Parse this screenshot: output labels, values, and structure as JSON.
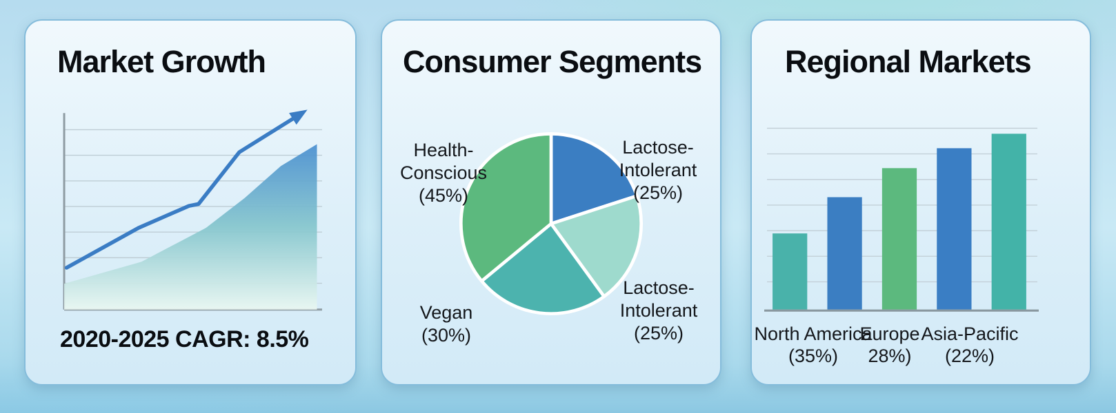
{
  "background": {
    "base_top": "#b6dcef",
    "base_bottom": "#8cc8e2",
    "card_border": "#84bcdb",
    "card_bg_top": "#f1f9fd",
    "card_bg_bottom": "#d2eaf7"
  },
  "cards": [
    {
      "title": "Market Growth",
      "caption": "2020-2025 CAGR: 8.5%"
    },
    {
      "title": "Consumer Segments",
      "labels": [
        {
          "lines": [
            "Health-",
            "Conscious",
            "(45%)"
          ]
        },
        {
          "lines": [
            "Lactose-",
            "Intolerant",
            "(25%)"
          ]
        },
        {
          "lines": [
            "Lactose-",
            "Intolerant",
            "(25%)"
          ]
        },
        {
          "lines": [
            "Vegan",
            "(30%)"
          ]
        }
      ]
    },
    {
      "title": "Regional Markets",
      "labels": [
        {
          "lines": [
            "North America",
            "(35%)"
          ]
        },
        {
          "lines": [
            "Europe",
            "28%)"
          ]
        },
        {
          "lines": [
            "Asia-Pacific",
            "(22%)"
          ]
        }
      ]
    }
  ],
  "chart_data": [
    {
      "type": "area",
      "title": "Market Growth",
      "annotation": "2020-2025 CAGR: 8.5%",
      "xlabel": "",
      "ylabel": "",
      "grid": true,
      "gridlines": 7,
      "line_points_pct": [
        [
          1,
          21
        ],
        [
          31,
          41
        ],
        [
          52,
          52
        ],
        [
          56,
          53
        ],
        [
          73,
          79
        ],
        [
          97,
          97
        ]
      ],
      "area_points_pct": [
        [
          0,
          13
        ],
        [
          30,
          24
        ],
        [
          55,
          41
        ],
        [
          70,
          56
        ],
        [
          84,
          72
        ],
        [
          98,
          83
        ]
      ],
      "line_color": "#3a7cc4",
      "area_gradient": [
        "#4a8fd0",
        "#86c6cd",
        "#e9f7f1"
      ],
      "axis_color": "#8f9ca3",
      "grid_color": "#becdd5",
      "arrow_end": true
    },
    {
      "type": "pie",
      "title": "Consumer Segments",
      "start_angle_deg": -90,
      "direction": "clockwise",
      "slices": [
        {
          "label": "Lactose-Intolerant",
          "value": 25,
          "color": "#3b7ec2"
        },
        {
          "label": "Lactose-Intolerant",
          "value": 25,
          "color": "#9edacd"
        },
        {
          "label": "Vegan",
          "value": 30,
          "color": "#4cb3ae"
        },
        {
          "label": "Health-Conscious",
          "value": 45,
          "color": "#5cb97e"
        }
      ],
      "slice_divider_color": "#ffffff"
    },
    {
      "type": "bar",
      "title": "Regional Markets",
      "categories": [
        "North America",
        "Europe",
        "Asia-Pacific"
      ],
      "values": [
        35,
        28,
        22
      ],
      "tick_labels": [
        "North America (35%)",
        "Europe 28%)",
        "Asia-Pacific (22%)"
      ],
      "bars_rendered": 5,
      "bar_heights_relative": [
        0.42,
        0.62,
        0.78,
        0.89,
        0.97
      ],
      "bar_colors": [
        "#49b2aa",
        "#3b7ec2",
        "#5cb97e",
        "#3a7ec4",
        "#43b3a8"
      ],
      "grid": true,
      "gridlines": 7,
      "grid_color": "#c3d0d8",
      "axis_color": "#8a989f",
      "legend": false
    }
  ]
}
